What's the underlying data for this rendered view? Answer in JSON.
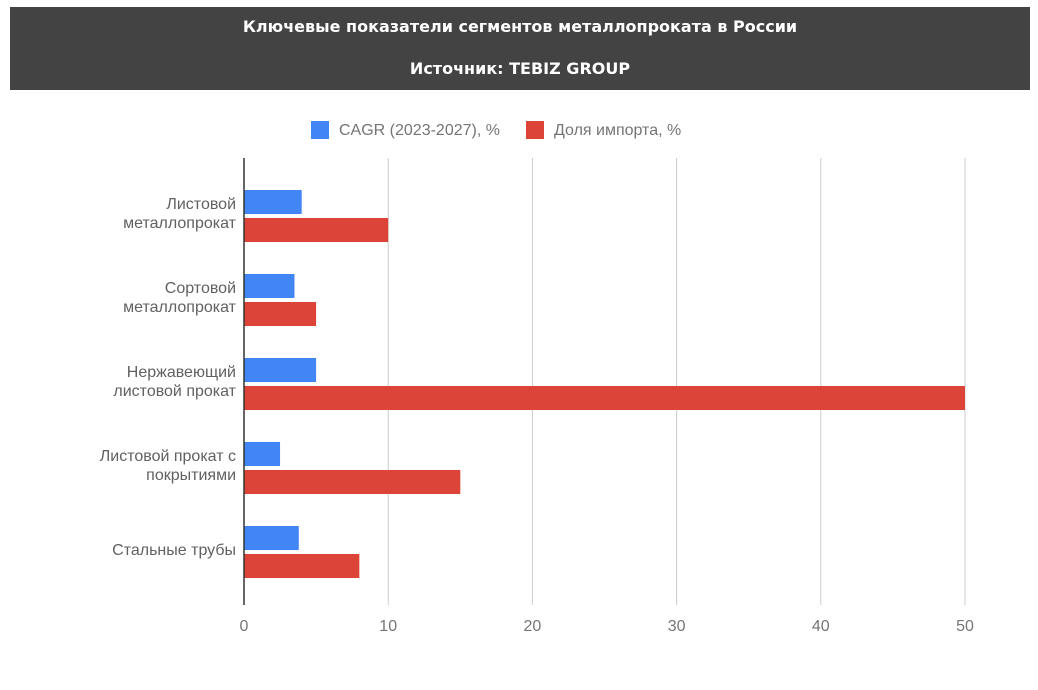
{
  "chart_data": {
    "type": "hbar",
    "title": "Ключевые показатели сегментов металлопроката в России",
    "subtitle": "Источник: TEBIZ GROUP",
    "categories": [
      "Листовой металлопрокат",
      "Сортовой металлопрокат",
      "Нержавеющий листовой прокат",
      "Листовой прокат с покрытиями",
      "Стальные трубы"
    ],
    "series": [
      {
        "name": "CAGR (2023-2027), %",
        "color": "#4285f4",
        "values": [
          4,
          3.5,
          5,
          2.5,
          3.8
        ]
      },
      {
        "name": "Доля импорта, %",
        "color": "#db4437",
        "values": [
          10,
          5,
          50,
          15,
          8
        ]
      }
    ],
    "xlim": [
      0,
      50
    ],
    "xticks": [
      0,
      10,
      20,
      30,
      40,
      50
    ],
    "grid": true,
    "legend": "top"
  }
}
